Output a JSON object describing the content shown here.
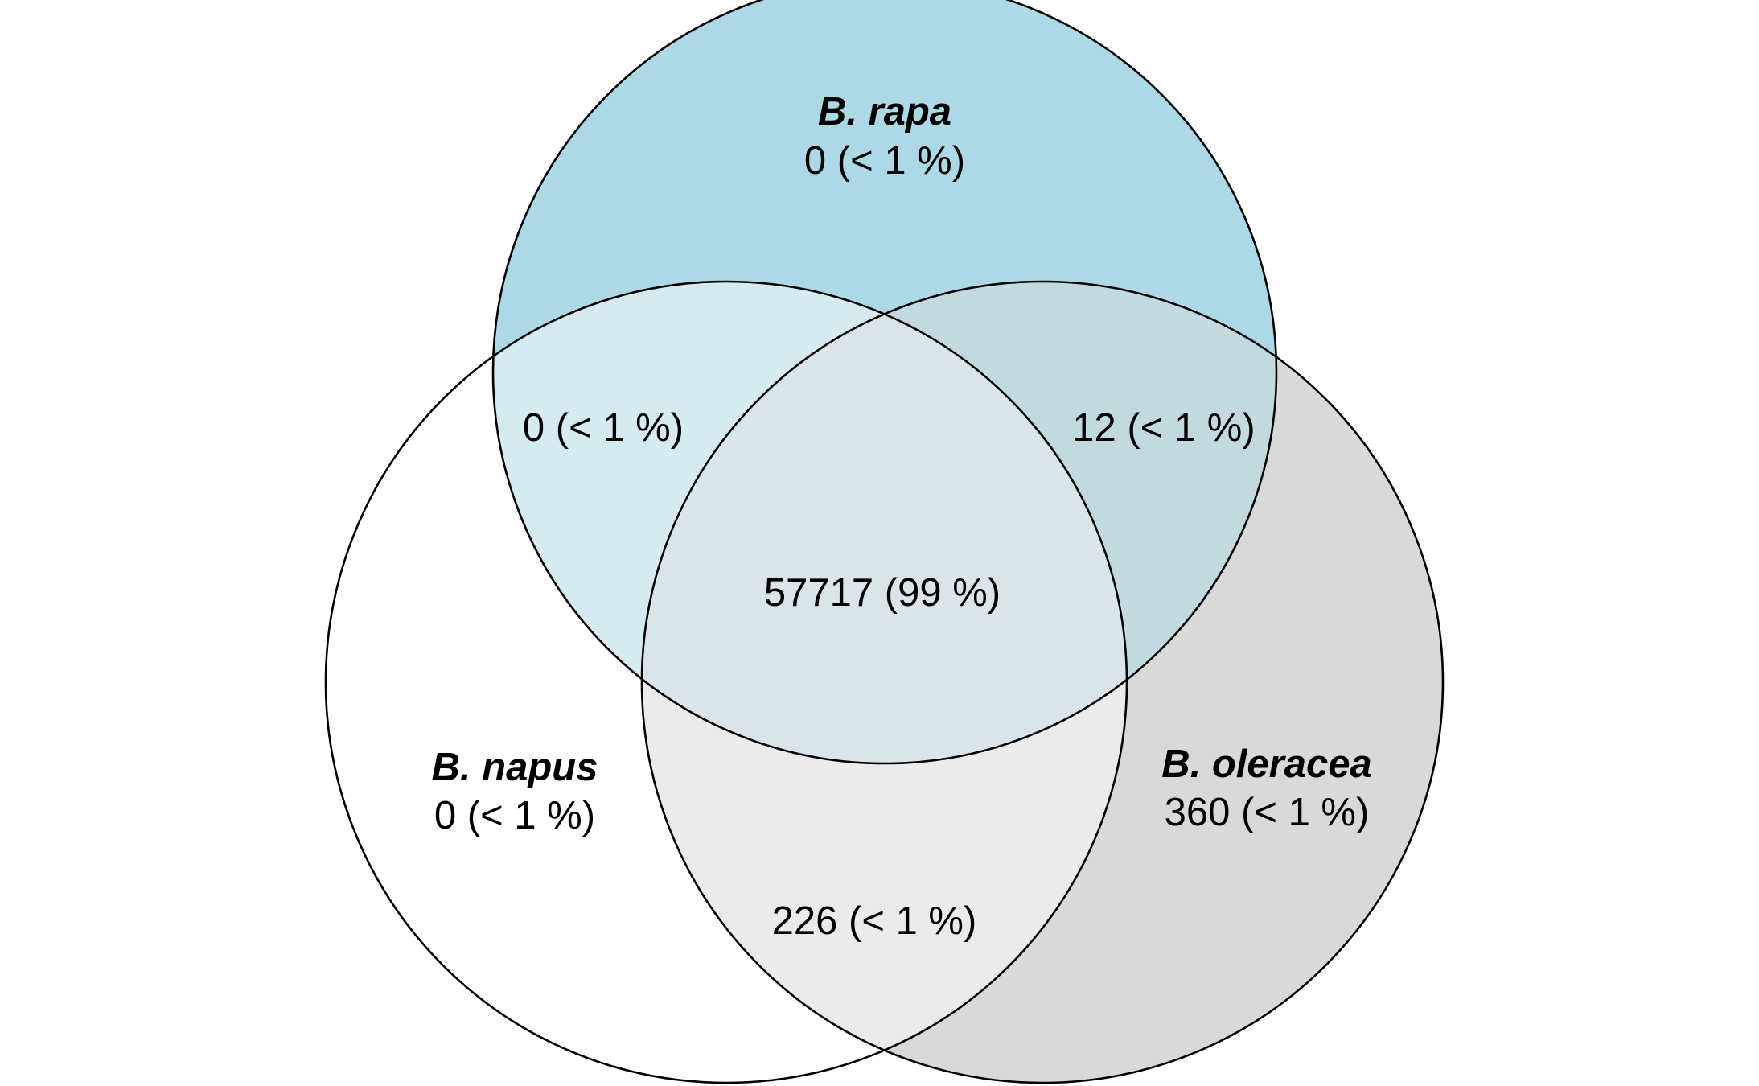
{
  "sets": [
    {
      "id": "rapa",
      "name": "B. rapa",
      "fill": "#add8e6"
    },
    {
      "id": "napus",
      "name": "B. napus",
      "fill": "#ffffff"
    },
    {
      "id": "oleracea",
      "name": "B. oleracea",
      "fill": "#d3d3d3"
    }
  ],
  "regions": {
    "rapa_only": "0 (< 1 %)",
    "napus_only": "0 (< 1 %)",
    "oleracea_only": "360 (< 1 %)",
    "rapa_napus": "0 (< 1 %)",
    "rapa_oleracea": "12 (< 1 %)",
    "napus_oleracea": "226 (< 1 %)",
    "all_three": "57717 (99 %)"
  },
  "region_fills": {
    "rapa_only": "#add8e6",
    "napus_only": "#ffffff",
    "oleracea_only": "#d9d9d9",
    "rapa_napus": "#d6eaf1",
    "rapa_oleracea": "#c3d9e0",
    "napus_oleracea": "#ebebeb",
    "all_three": "#d9e5ea"
  }
}
